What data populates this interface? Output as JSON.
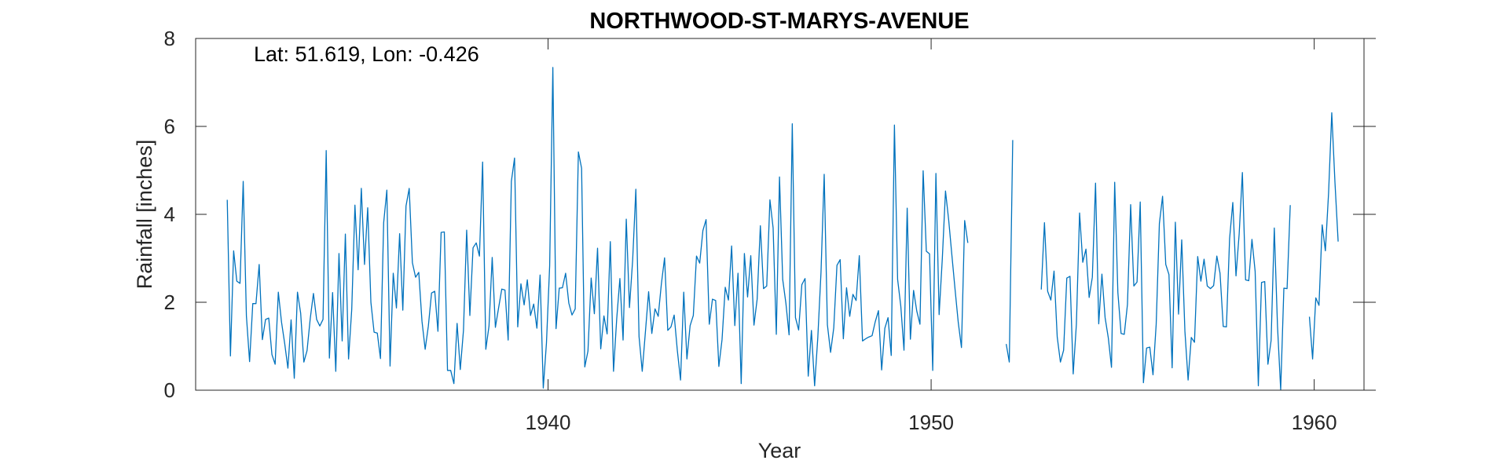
{
  "chart_data": {
    "type": "line",
    "title": "NORTHWOOD-ST-MARYS-AVENUE",
    "xlabel": "Year",
    "ylabel": "Rainfall [inches]",
    "annotation": "Lat: 51.619, Lon: -0.426",
    "xlim": [
      1930.8,
      1961.3
    ],
    "ylim": [
      0,
      8
    ],
    "xticks": [
      1940,
      1950,
      1960
    ],
    "yticks": [
      0,
      2,
      4,
      6,
      8
    ],
    "grid": false,
    "line_color": "#0072BD",
    "series": [
      {
        "x_start": 1931.625,
        "x_step": 0.08333333,
        "values": [
          4.33,
          0.78,
          3.17,
          2.48,
          2.43,
          4.75,
          1.69,
          0.65,
          1.97,
          1.97,
          2.86,
          1.15,
          1.61,
          1.64,
          0.81,
          0.59,
          2.23,
          1.55,
          1.06,
          0.5,
          1.6,
          0.27,
          2.23,
          1.75,
          0.64,
          0.9,
          1.63,
          2.2,
          1.61,
          1.46,
          1.61,
          5.45,
          0.73,
          2.22,
          0.43,
          3.11,
          1.12,
          3.55,
          0.71,
          1.84,
          4.21,
          2.74,
          4.59,
          2.86,
          4.15,
          2.0,
          1.32,
          1.3,
          0.72,
          3.81,
          4.55,
          0.55,
          2.66,
          1.87,
          3.56,
          1.82,
          4.19,
          4.59,
          2.9,
          2.57,
          2.68,
          1.57,
          0.93,
          1.46,
          2.21,
          2.25,
          1.34,
          3.59,
          3.6,
          0.45,
          0.45,
          0.15,
          1.52,
          0.47,
          1.36,
          3.64,
          1.7,
          3.24,
          3.35,
          3.05,
          5.19,
          0.93,
          1.46,
          3.02,
          1.43,
          1.87,
          2.3,
          2.28,
          1.14,
          4.75,
          5.28,
          1.44,
          2.42,
          1.94,
          2.51,
          1.7,
          1.96,
          1.41,
          2.62,
          0.05,
          1.08,
          2.83,
          7.34,
          1.4,
          2.32,
          2.33,
          2.66,
          1.98,
          1.71,
          1.85,
          5.42,
          5.05,
          0.53,
          0.89,
          2.55,
          1.74,
          3.23,
          0.94,
          1.69,
          1.28,
          3.38,
          0.43,
          1.62,
          2.54,
          1.14,
          3.89,
          1.88,
          2.96,
          4.57,
          1.22,
          0.43,
          1.33,
          2.24,
          1.29,
          1.85,
          1.68,
          2.42,
          3.01,
          1.36,
          1.44,
          1.71,
          0.9,
          0.23,
          2.23,
          0.71,
          1.47,
          1.7,
          3.05,
          2.89,
          3.63,
          3.88,
          1.5,
          2.07,
          2.04,
          0.54,
          1.15,
          2.34,
          2.05,
          3.28,
          1.47,
          2.66,
          0.15,
          3.11,
          2.12,
          3.06,
          1.48,
          2.07,
          3.74,
          2.31,
          2.37,
          4.33,
          3.69,
          1.27,
          4.85,
          2.52,
          1.98,
          1.26,
          6.06,
          1.65,
          1.37,
          2.4,
          2.54,
          0.32,
          1.36,
          0.1,
          1.2,
          2.68,
          4.91,
          1.49,
          0.86,
          1.42,
          2.84,
          2.97,
          1.17,
          2.33,
          1.68,
          2.18,
          2.04,
          3.06,
          1.12,
          1.17,
          1.21,
          1.24,
          1.56,
          1.81,
          0.46,
          1.41,
          1.65,
          0.79,
          6.03,
          2.52,
          1.91,
          0.91,
          4.14,
          1.16,
          2.27,
          1.8,
          1.5,
          4.99,
          3.16,
          3.1,
          0.45,
          4.93,
          1.72,
          2.99,
          4.53,
          3.87,
          3.07,
          2.29,
          1.54,
          0.97,
          3.86,
          3.35
        ]
      },
      {
        "x": [
          1951.96,
          1952.04,
          1952.13
        ],
        "values": [
          1.05,
          0.64,
          5.69
        ]
      },
      {
        "x_start": 1952.875,
        "x_step": 0.08333333,
        "values": [
          2.29,
          3.81,
          2.25,
          2.05,
          2.71,
          1.21,
          0.64,
          0.91,
          2.55,
          2.59,
          0.37,
          1.5,
          4.03,
          2.91,
          3.21,
          2.11,
          2.57,
          4.71,
          1.51,
          2.64,
          1.65,
          1.19,
          0.52,
          4.73,
          2.22,
          1.29,
          1.27,
          1.95,
          4.22,
          2.37,
          2.46,
          4.28,
          0.17,
          0.96,
          0.98,
          0.35,
          1.5,
          3.79,
          4.41,
          2.86,
          2.63,
          0.51,
          3.82,
          1.73,
          3.42,
          1.34,
          0.23,
          1.2,
          1.09,
          3.04,
          2.48,
          2.98,
          2.37,
          2.31,
          2.38,
          3.05,
          2.66,
          1.45,
          1.44,
          3.45,
          4.27,
          2.6,
          3.56,
          4.95,
          2.51,
          2.49,
          3.43,
          2.7,
          0.1,
          2.45,
          2.47,
          0.59,
          1.13,
          3.69,
          1.46,
          0.01,
          2.32,
          2.31,
          4.21
        ]
      },
      {
        "x_start": 1959.875,
        "x_step": 0.08333333,
        "values": [
          1.67,
          0.71,
          2.1,
          1.93,
          3.76,
          3.17,
          4.48,
          6.31,
          4.73,
          3.38
        ]
      }
    ]
  }
}
